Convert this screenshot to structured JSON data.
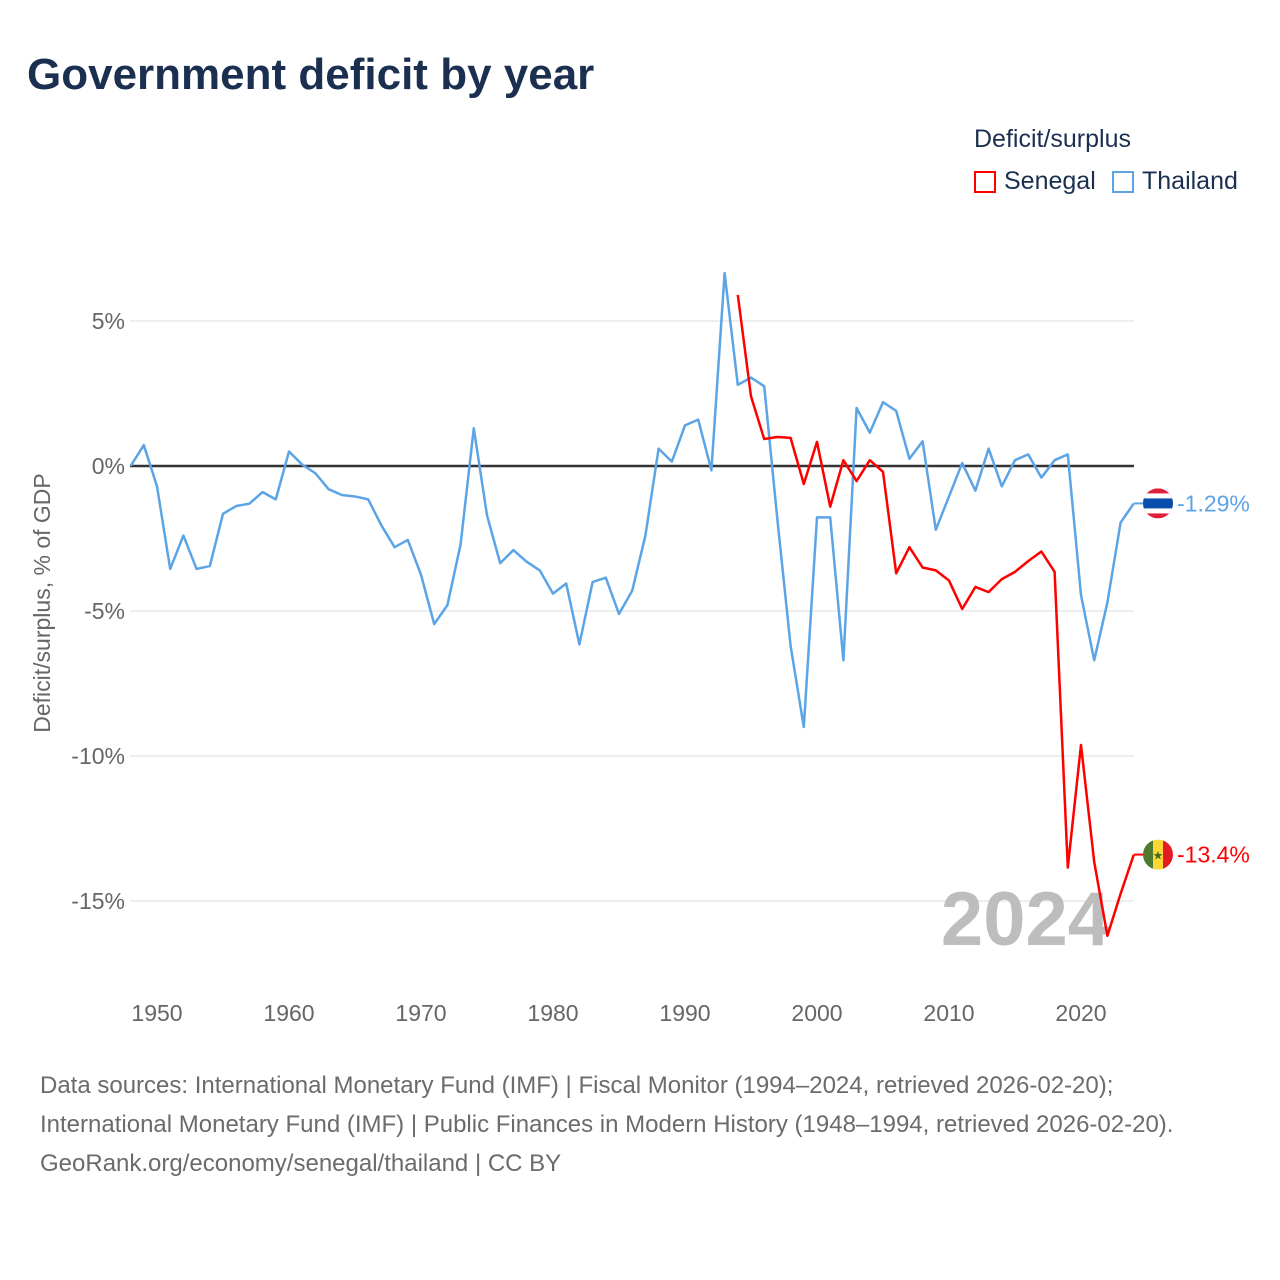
{
  "title": "Government deficit by year",
  "legend": {
    "title": "Deficit/surplus",
    "items": [
      {
        "name": "Senegal",
        "color": "#ff0000"
      },
      {
        "name": "Thailand",
        "color": "#5ba4e6"
      }
    ]
  },
  "footer": {
    "sources": "Data sources: International Monetary Fund (IMF) | Fiscal Monitor (1994–2024, retrieved 2026-02-20); International Monetary Fund (IMF) | Public Finances in Modern History (1948–1994, retrieved 2026-02-20).",
    "credit": "GeoRank.org/economy/senegal/thailand | CC BY"
  },
  "chart_data": {
    "type": "line",
    "title": "Government deficit by year",
    "xlabel": "",
    "ylabel": "Deficit/surplus, % of GDP",
    "xlim": [
      1948,
      2024
    ],
    "ylim": [
      -17.5,
      7
    ],
    "xticks": [
      1950,
      1960,
      1970,
      1980,
      1990,
      2000,
      2010,
      2020
    ],
    "yticks": [
      {
        "v": 5,
        "label": "5%"
      },
      {
        "v": 0,
        "label": "0%"
      },
      {
        "v": -5,
        "label": "-5%"
      },
      {
        "v": -10,
        "label": "-10%"
      },
      {
        "v": -15,
        "label": "-15%"
      }
    ],
    "year_watermark": "2024",
    "series": [
      {
        "name": "Thailand",
        "color": "#5ba4e6",
        "end_label": "-1.29%",
        "start": 1948,
        "values": [
          0,
          0.72,
          -0.7,
          -3.55,
          -2.4,
          -3.55,
          -3.45,
          -1.65,
          -1.38,
          -1.3,
          -0.9,
          -1.15,
          0.5,
          0.05,
          -0.25,
          -0.8,
          -1.0,
          -1.05,
          -1.15,
          -2.05,
          -2.8,
          -2.55,
          -3.75,
          -5.45,
          -4.8,
          -2.7,
          1.3,
          -1.7,
          -3.35,
          -2.9,
          -3.3,
          -3.6,
          -4.4,
          -4.05,
          -6.15,
          -4.0,
          -3.85,
          -5.1,
          -4.3,
          -2.4,
          0.6,
          0.15,
          1.4,
          1.6,
          -0.15,
          6.65,
          2.8,
          3.05,
          2.75,
          -1.85,
          -6.2,
          -9.0,
          -1.77,
          -1.77,
          -6.7,
          2.0,
          1.15,
          2.2,
          1.9,
          0.25,
          0.85,
          -2.2,
          -1.05,
          0.1,
          -0.85,
          0.6,
          -0.7,
          0.2,
          0.4,
          -0.4,
          0.2,
          0.4,
          -4.45,
          -6.7,
          -4.7,
          -1.95,
          -1.29
        ]
      },
      {
        "name": "Senegal",
        "color": "#ff0000",
        "end_label": "-13.4%",
        "start": 1994,
        "values": [
          5.9,
          2.4,
          0.93,
          1.0,
          0.97,
          -0.62,
          0.83,
          -1.4,
          0.2,
          -0.52,
          0.2,
          -0.2,
          -3.7,
          -2.8,
          -3.5,
          -3.6,
          -3.95,
          -4.93,
          -4.17,
          -4.35,
          -3.9,
          -3.65,
          -3.28,
          -2.95,
          -3.65,
          -13.85,
          -9.62,
          -13.65,
          -16.2,
          -14.75,
          -13.4
        ]
      }
    ]
  }
}
